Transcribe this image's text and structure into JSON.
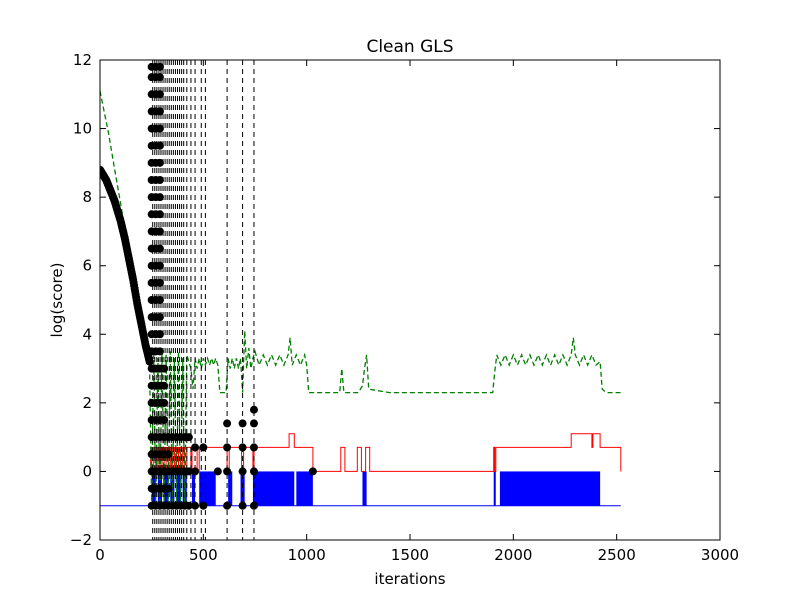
{
  "chart_data": {
    "type": "line",
    "title": "Clean GLS",
    "xlabel": "iterations",
    "ylabel": "log(score)",
    "xlim": [
      0,
      3000
    ],
    "ylim": [
      -2,
      12
    ],
    "xticks": [
      0,
      500,
      1000,
      1500,
      2000,
      2500,
      3000
    ],
    "yticks": [
      -2,
      0,
      2,
      4,
      6,
      8,
      10,
      12
    ],
    "xtick_labels": [
      "0",
      "500",
      "1000",
      "1500",
      "2000",
      "2500",
      "3000"
    ],
    "ytick_labels": [
      "−2",
      "0",
      "2",
      "4",
      "6",
      "8",
      "10",
      "12"
    ],
    "grid": false,
    "legend": "none",
    "colors": {
      "baseline": "#0000ff",
      "blue_fill": "#0000ff",
      "red_step": "#ff0000",
      "green_dashed": "#007f00",
      "black_markers": "#000000",
      "vertical_dashed": "#000000"
    },
    "series": [
      {
        "kind": "horizontal-line",
        "color": "#0000ff",
        "x": [
          0,
          2520
        ],
        "y": [
          -1,
          -1
        ]
      },
      {
        "kind": "blue-fill",
        "color": "#0000ff",
        "intervals": [
          [
            250,
            270
          ],
          [
            280,
            300
          ],
          [
            310,
            330
          ],
          [
            340,
            360
          ],
          [
            370,
            390
          ],
          [
            400,
            420
          ],
          [
            445,
            460
          ],
          [
            480,
            560
          ],
          [
            620,
            640
          ],
          [
            680,
            700
          ],
          [
            740,
            940
          ],
          [
            950,
            1030
          ],
          [
            1270,
            1290
          ],
          [
            1905,
            1915
          ],
          [
            1935,
            2420
          ]
        ],
        "from": -1,
        "to": 0
      },
      {
        "kind": "step-line",
        "color": "#ff0000",
        "x": [
          240,
          245,
          250,
          260,
          270,
          280,
          290,
          300,
          310,
          320,
          330,
          340,
          350,
          360,
          370,
          380,
          390,
          400,
          410,
          420,
          440,
          445,
          470,
          480,
          500,
          615,
          625,
          685,
          695,
          740,
          745,
          900,
          915,
          930,
          940,
          960,
          1030,
          1160,
          1165,
          1180,
          1185,
          1240,
          1245,
          1260,
          1265,
          1280,
          1285,
          1300,
          1305,
          1895,
          1905,
          1910,
          1915,
          1930,
          2270,
          2280,
          2290,
          2380,
          2385,
          2420,
          2520
        ],
        "y": [
          0,
          0.7,
          0,
          0.7,
          0,
          0.7,
          0,
          0.7,
          0,
          0.7,
          0,
          0.7,
          0,
          0.7,
          0,
          0.7,
          0,
          0.7,
          0,
          0.7,
          0,
          0.7,
          0,
          0.7,
          0.7,
          0,
          0.7,
          0,
          0.7,
          0,
          0.7,
          0.7,
          1.1,
          1.1,
          0.7,
          0.7,
          0,
          0,
          0.7,
          0.7,
          0,
          0,
          0.7,
          0.7,
          0,
          0,
          0.7,
          0.7,
          0,
          0,
          0.7,
          0,
          0.7,
          0.7,
          0.7,
          1.1,
          1.1,
          0.7,
          1.1,
          0.7,
          0
        ]
      },
      {
        "kind": "dashed-line",
        "color": "#007f00",
        "x": [
          0,
          20,
          40,
          60,
          80,
          100,
          120,
          140,
          160,
          180,
          200,
          220,
          240,
          250,
          260,
          270,
          280,
          290,
          300,
          310,
          320,
          330,
          340,
          350,
          360,
          370,
          380,
          390,
          400,
          410,
          420,
          430,
          440,
          450,
          460,
          470,
          480,
          490,
          500,
          510,
          520,
          530,
          540,
          550,
          560,
          570,
          580,
          590,
          600,
          610,
          620,
          630,
          640,
          650,
          660,
          670,
          680,
          690,
          700,
          710,
          720,
          730,
          740,
          750,
          770,
          790,
          810,
          830,
          850,
          870,
          890,
          910,
          920,
          930,
          950,
          970,
          990,
          1000,
          1010,
          1020,
          1100,
          1160,
          1170,
          1180,
          1200,
          1250,
          1270,
          1280,
          1290,
          1300,
          1400,
          1600,
          1800,
          1900,
          1910,
          1920,
          1940,
          1960,
          1980,
          2000,
          2020,
          2040,
          2060,
          2080,
          2100,
          2120,
          2140,
          2160,
          2180,
          2200,
          2220,
          2240,
          2260,
          2280,
          2290,
          2300,
          2320,
          2340,
          2360,
          2380,
          2400,
          2420,
          2430,
          2450,
          2520
        ],
        "y": [
          11.1,
          10.5,
          9.9,
          9.2,
          8.5,
          7.8,
          7.1,
          6.4,
          5.6,
          4.9,
          4.2,
          3.6,
          3.0,
          -1.0,
          3.5,
          -1.0,
          3.3,
          -1.0,
          3.5,
          -1.0,
          3.4,
          -1.0,
          3.5,
          -1.0,
          3.3,
          -1.0,
          3.5,
          -1.0,
          3.3,
          -1.0,
          3.4,
          3.2,
          3.0,
          2.4,
          3.3,
          3.0,
          3.3,
          3.0,
          3.3,
          3.1,
          3.3,
          3.1,
          3.3,
          3.1,
          3.3,
          3.1,
          2.3,
          2.3,
          2.3,
          2.3,
          3.3,
          3.0,
          3.3,
          3.0,
          3.3,
          3.0,
          3.3,
          2.3,
          4.1,
          3.0,
          3.6,
          3.0,
          3.3,
          3.5,
          3.1,
          3.4,
          3.1,
          3.4,
          3.1,
          3.4,
          3.1,
          3.4,
          3.9,
          3.1,
          3.4,
          3.1,
          3.4,
          3.1,
          2.3,
          2.3,
          2.3,
          2.3,
          3.0,
          2.3,
          2.3,
          2.3,
          2.5,
          3.0,
          3.4,
          2.4,
          2.3,
          2.3,
          2.3,
          2.3,
          2.9,
          3.4,
          3.1,
          3.4,
          3.1,
          3.4,
          3.1,
          3.4,
          3.1,
          3.4,
          3.1,
          3.4,
          3.1,
          3.4,
          3.1,
          3.4,
          3.1,
          3.4,
          3.1,
          3.4,
          3.9,
          3.4,
          3.1,
          3.4,
          3.1,
          3.4,
          3.1,
          3.2,
          2.4,
          2.3,
          2.3
        ]
      },
      {
        "kind": "marker-curve",
        "color": "#000000",
        "x": [
          0,
          10,
          20,
          30,
          40,
          50,
          60,
          70,
          80,
          90,
          100,
          110,
          120,
          130,
          140,
          150,
          160,
          170,
          180,
          190,
          200,
          210,
          220,
          230,
          240
        ],
        "y": [
          8.8,
          8.7,
          8.6,
          8.5,
          8.35,
          8.2,
          8.05,
          7.9,
          7.7,
          7.5,
          7.3,
          7.05,
          6.8,
          6.5,
          6.2,
          5.9,
          5.6,
          5.25,
          4.9,
          4.6,
          4.3,
          4.0,
          3.7,
          3.45,
          3.2
        ]
      },
      {
        "kind": "marker-columns",
        "color": "#000000",
        "points": [
          {
            "x": 250,
            "y": [
              -1,
              -0.5,
              0,
              0.5,
              1.0,
              1.5,
              2.0,
              2.5,
              3.0,
              3.5,
              4.0,
              4.5,
              5.0,
              5.5,
              6.0,
              6.5,
              7.0,
              7.5,
              8.0,
              8.5,
              9.0,
              9.5,
              10.0,
              10.5,
              11.0,
              11.5,
              11.8
            ]
          },
          {
            "x": 270,
            "y": [
              -1,
              -0.5,
              0,
              0.5,
              1.0,
              1.5,
              2.0,
              2.5,
              3.0,
              3.5,
              4.0,
              4.5,
              5.0,
              5.5,
              6.0,
              6.5,
              7.0,
              7.5,
              8.0,
              8.5,
              9.0,
              9.5,
              10.0,
              10.5,
              11.0,
              11.5,
              11.8
            ]
          },
          {
            "x": 290,
            "y": [
              -1,
              -0.5,
              0,
              0.5,
              1.0,
              1.5,
              2.0,
              2.5,
              3.0,
              3.5,
              4.0,
              4.5,
              5.0,
              5.5,
              6.0,
              6.5,
              7.0,
              7.5,
              8.0,
              8.5,
              9.0,
              9.5,
              10.0,
              10.5,
              11.0,
              11.5,
              11.8
            ]
          },
          {
            "x": 310,
            "y": [
              -1,
              -0.5,
              0,
              0.5,
              1.0,
              1.5,
              2.0,
              2.5,
              3.0
            ]
          },
          {
            "x": 330,
            "y": [
              -1,
              -0.5,
              0,
              0.5,
              1.0
            ]
          },
          {
            "x": 350,
            "y": [
              -1,
              0,
              1.0
            ]
          },
          {
            "x": 370,
            "y": [
              -1,
              0,
              1.0
            ]
          },
          {
            "x": 390,
            "y": [
              -1,
              0,
              1.0
            ]
          },
          {
            "x": 410,
            "y": [
              -1,
              0,
              1.0
            ]
          },
          {
            "x": 430,
            "y": [
              -1,
              0,
              1.0
            ]
          },
          {
            "x": 460,
            "y": [
              -1,
              0,
              0.7
            ]
          },
          {
            "x": 500,
            "y": [
              -1,
              0.7
            ]
          },
          {
            "x": 570,
            "y": [
              0
            ]
          },
          {
            "x": 615,
            "y": [
              -1,
              0,
              0.7,
              1.4
            ]
          },
          {
            "x": 690,
            "y": [
              -1,
              0,
              0.7,
              1.4
            ]
          },
          {
            "x": 745,
            "y": [
              -1,
              0,
              0.7,
              1.4,
              1.8
            ]
          },
          {
            "x": 1030,
            "y": [
              0
            ]
          }
        ]
      },
      {
        "kind": "vertical-dashed",
        "color": "#000000",
        "x": [
          255,
          265,
          275,
          285,
          295,
          305,
          315,
          325,
          335,
          345,
          355,
          365,
          375,
          385,
          395,
          405,
          420,
          440,
          460,
          490,
          510,
          615,
          690,
          745
        ]
      }
    ]
  }
}
